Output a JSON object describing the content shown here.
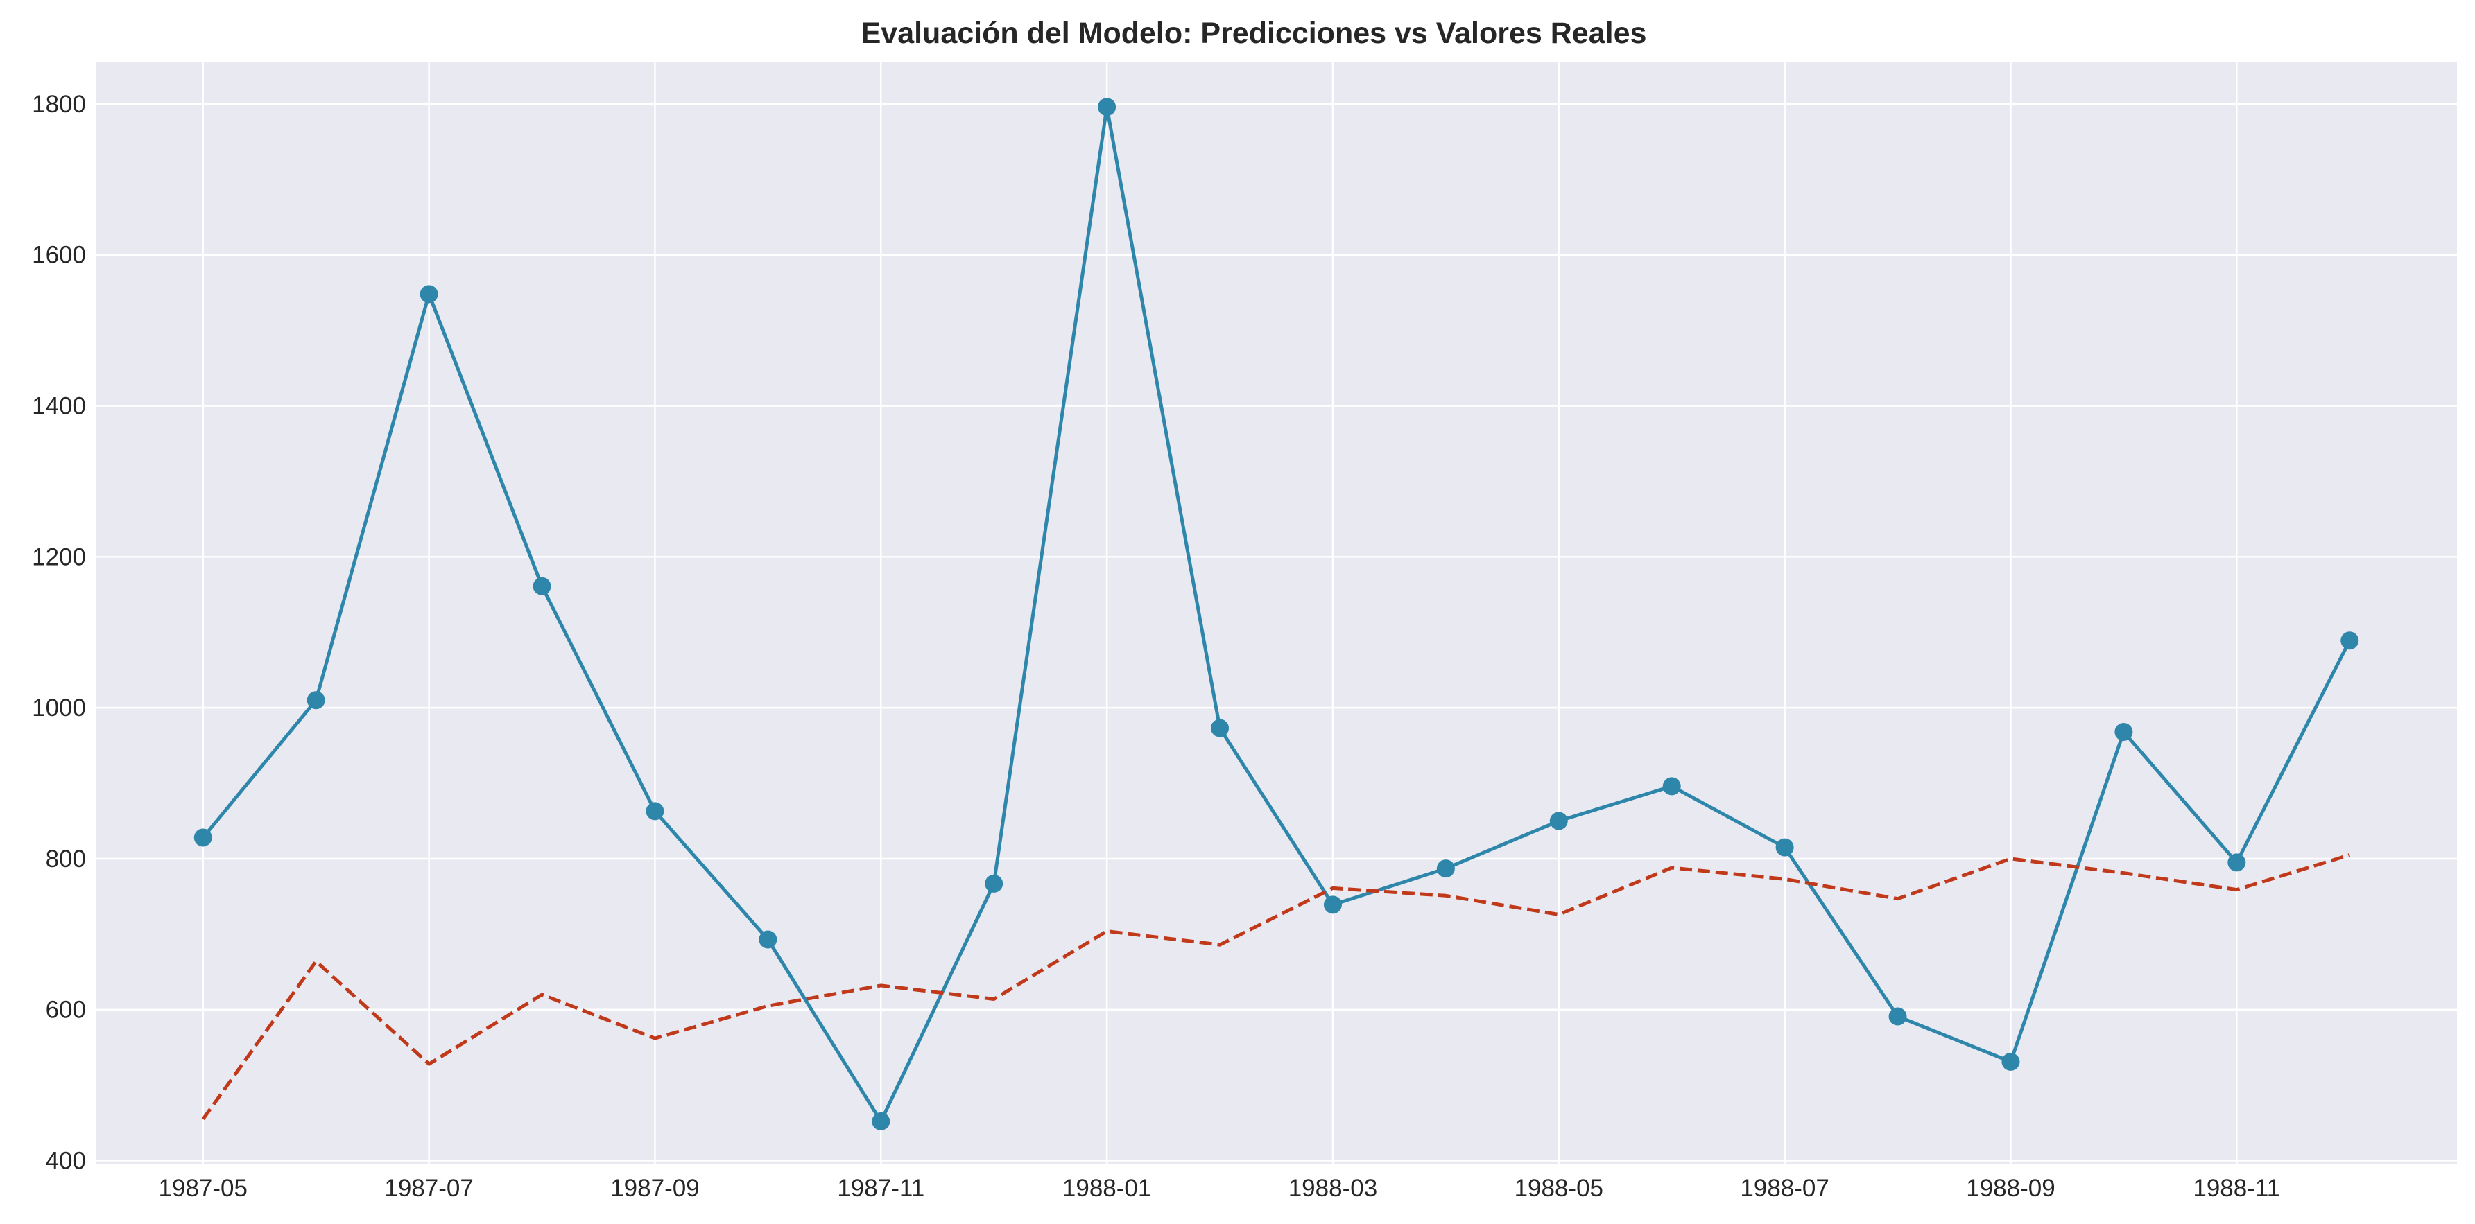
{
  "chart_data": {
    "type": "line",
    "title": "Evaluación del Modelo: Predicciones vs Valores Reales",
    "xlabel": "",
    "ylabel": "",
    "x": [
      "1987-05",
      "1987-06",
      "1987-07",
      "1987-08",
      "1987-09",
      "1987-10",
      "1987-11",
      "1987-12",
      "1988-01",
      "1988-02",
      "1988-03",
      "1988-04",
      "1988-05",
      "1988-06",
      "1988-07",
      "1988-08",
      "1988-09",
      "1988-10",
      "1988-11",
      "1988-12"
    ],
    "xticks": [
      "1987-05",
      "1987-07",
      "1987-09",
      "1987-11",
      "1988-01",
      "1988-03",
      "1988-05",
      "1988-07",
      "1988-09",
      "1988-11"
    ],
    "yticks": [
      400,
      600,
      800,
      1000,
      1200,
      1400,
      1600,
      1800
    ],
    "ylim": [
      395,
      1855
    ],
    "grid": true,
    "series": [
      {
        "values": [
          828,
          1010,
          1548,
          1161,
          863,
          693,
          452,
          767,
          1796,
          973,
          739,
          787,
          850,
          896,
          815,
          591,
          531,
          968,
          795,
          1089
        ],
        "color": "#2e86ab",
        "style": "solid",
        "marker": "circle"
      },
      {
        "values": [
          455,
          664,
          528,
          620,
          562,
          605,
          632,
          614,
          704,
          686,
          761,
          751,
          726,
          788,
          773,
          747,
          800,
          781,
          759,
          805
        ],
        "color": "#c0391b",
        "style": "dashed",
        "marker": "none"
      }
    ],
    "colors": {
      "plot_background": "#e9e9f1",
      "grid": "#ffffff",
      "text": "#262626"
    }
  }
}
